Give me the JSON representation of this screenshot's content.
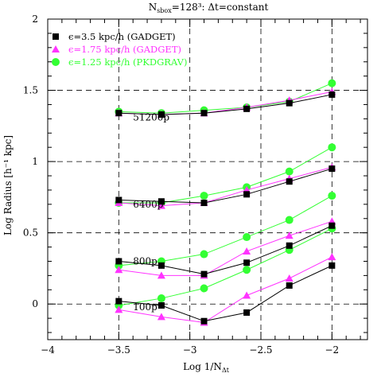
{
  "chart_data": {
    "type": "line",
    "title_main": "N",
    "title_sub": "sbox",
    "title_rest": "=128³: Δt=constant",
    "xlabel_main": "Log 1/N",
    "xlabel_sub": "Δt",
    "ylabel": "Log Radius [h⁻¹ kpc]",
    "xlim": [
      -4,
      -1.75
    ],
    "ylim": [
      -0.25,
      2
    ],
    "xticks": [
      -4,
      -3.5,
      -3,
      -2.5,
      -2
    ],
    "xtick_labels": [
      "−4",
      "−3.5",
      "−3",
      "−2.5",
      "−2"
    ],
    "yticks": [
      0,
      0.5,
      1,
      1.5,
      2
    ],
    "ytick_labels": [
      "0",
      "0.5",
      "1",
      "1.5",
      "2"
    ],
    "grid": "dashed at major ticks",
    "legend_position": "top-left",
    "x": [
      -3.5,
      -3.2,
      -2.9,
      -2.6,
      -2.3,
      -2.0
    ],
    "series": [
      {
        "name": "ϵ=3.5 kpc/h (GADGET)",
        "color": "#000000",
        "marker": "square",
        "groups": {
          "51200p": [
            1.34,
            1.33,
            1.34,
            1.37,
            1.41,
            1.47
          ],
          "6400p": [
            0.73,
            0.72,
            0.71,
            0.77,
            0.86,
            0.95
          ],
          "800p": [
            0.3,
            0.27,
            0.21,
            0.29,
            0.41,
            0.55
          ],
          "100p": [
            0.02,
            -0.01,
            -0.12,
            -0.06,
            0.13,
            0.27
          ]
        }
      },
      {
        "name": "ϵ=1.75 kpc/h (GADGET)",
        "color": "#ff33ff",
        "marker": "triangle",
        "groups": {
          "51200p": [
            1.34,
            1.33,
            1.34,
            1.38,
            1.43,
            1.49
          ],
          "6400p": [
            0.71,
            0.69,
            0.71,
            0.8,
            0.88,
            0.96
          ],
          "800p": [
            0.24,
            0.2,
            0.2,
            0.37,
            0.48,
            0.58
          ],
          "100p": [
            -0.04,
            -0.09,
            -0.13,
            0.06,
            0.18,
            0.33
          ]
        }
      },
      {
        "name": "ϵ=1.25 kpc/h (PKDGRAV)",
        "color": "#33ff33",
        "marker": "circle",
        "groups": {
          "51200p": [
            1.35,
            1.34,
            1.36,
            1.38,
            1.42,
            1.55
          ],
          "6400p": [
            0.71,
            0.71,
            0.76,
            0.82,
            0.93,
            1.1
          ],
          "800p": [
            0.27,
            0.3,
            0.35,
            0.47,
            0.59,
            0.76
          ],
          "100p": [
            -0.01,
            0.04,
            0.11,
            0.24,
            0.38,
            0.53
          ]
        }
      }
    ],
    "annotations": [
      {
        "label": "51200p",
        "x": -3.4,
        "y": 1.31
      },
      {
        "label": "6400p",
        "x": -3.4,
        "y": 0.7
      },
      {
        "label": "800p",
        "x": -3.4,
        "y": 0.3
      },
      {
        "label": "100p",
        "x": -3.4,
        "y": -0.02
      }
    ]
  }
}
